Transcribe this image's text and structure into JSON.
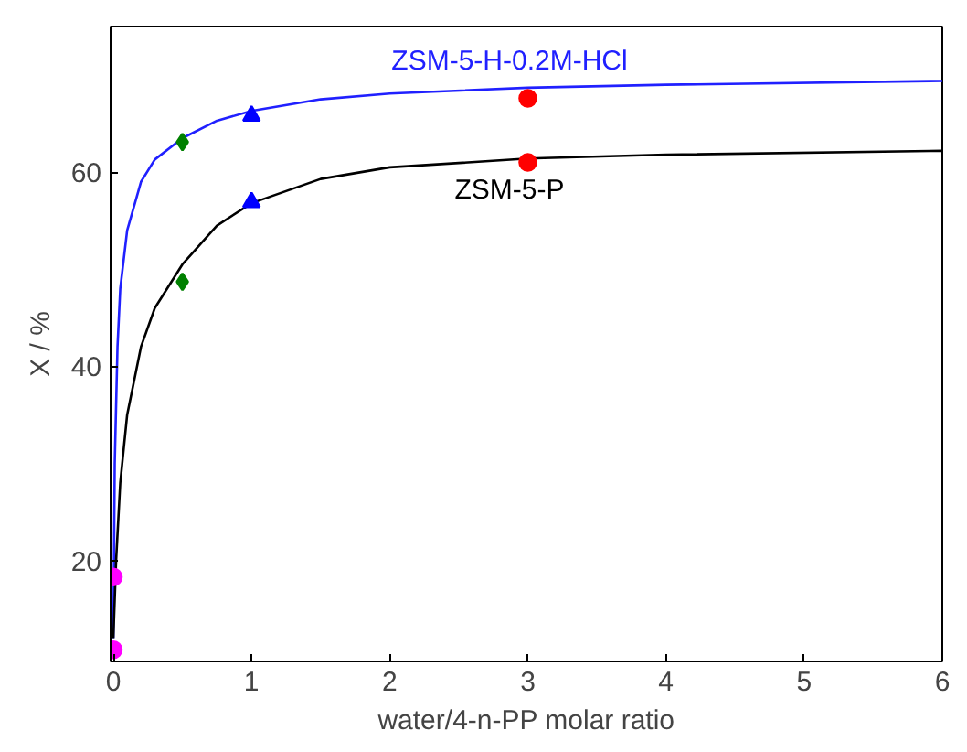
{
  "chart_data": {
    "type": "scatter",
    "xlabel": "water/4-n-PP molar ratio",
    "ylabel": "X / %",
    "xlim": [
      -0.02,
      6.0
    ],
    "ylim": [
      9.6,
      75
    ],
    "xticks": [
      0,
      1,
      2,
      3,
      4,
      5,
      6
    ],
    "yticks": [
      20,
      40,
      60
    ],
    "grid": false,
    "series": [
      {
        "name": "ZSM-5-H-0.2M-HCl",
        "type": "line",
        "color": "#2020ff",
        "x": [
          0,
          0.01,
          0.03,
          0.05,
          0.1,
          0.2,
          0.3,
          0.5,
          0.75,
          1,
          1.5,
          2,
          3,
          4,
          6
        ],
        "values": [
          12,
          30,
          42,
          48,
          54,
          59,
          61.3,
          63.5,
          65.3,
          66.3,
          67.5,
          68.1,
          68.7,
          69,
          69.4
        ]
      },
      {
        "name": "ZSM-5-P",
        "type": "line",
        "color": "#000000",
        "x": [
          0,
          0.02,
          0.05,
          0.1,
          0.2,
          0.3,
          0.5,
          0.75,
          1,
          1.5,
          2,
          3,
          4,
          6
        ],
        "values": [
          12,
          20,
          28,
          35,
          42,
          46,
          50.5,
          54.5,
          56.8,
          59.3,
          60.5,
          61.4,
          61.8,
          62.2
        ]
      },
      {
        "marker": "circle",
        "color": "#ff00ff",
        "x": [
          0,
          0
        ],
        "values": [
          10.8,
          18.3
        ]
      },
      {
        "marker": "diamond",
        "color": "#008000",
        "x": [
          0.5,
          0.5
        ],
        "values": [
          63.1,
          48.7
        ]
      },
      {
        "marker": "triangle",
        "color": "#0000ff",
        "x": [
          1,
          1
        ],
        "values": [
          65.8,
          56.9
        ]
      },
      {
        "marker": "circle",
        "color": "#ff0000",
        "x": [
          3,
          3
        ],
        "values": [
          67.6,
          61.0
        ]
      }
    ]
  }
}
